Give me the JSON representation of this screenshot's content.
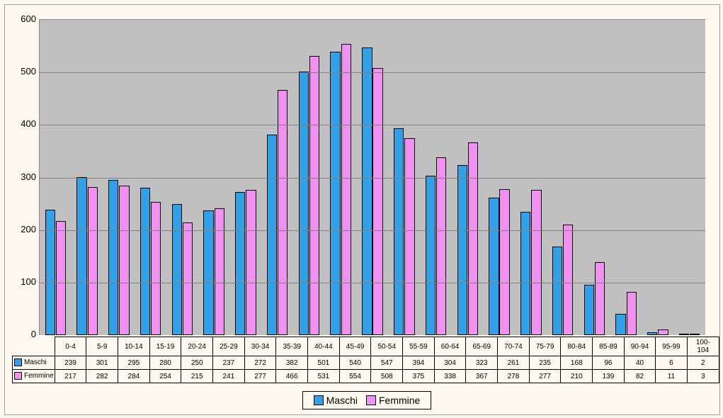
{
  "chart": {
    "type": "bar",
    "background_color": "#fdf8f0",
    "plot_background_color": "#c0c0c0",
    "grid_color": "#808080",
    "border_color": "#888888",
    "ylim": [
      0,
      600
    ],
    "ytick_step": 100,
    "ylabel_fontsize": 13,
    "category_fontsize": 10,
    "table_fontsize": 10,
    "legend_fontsize": 14,
    "bar_border_color": "#000000",
    "categories": [
      "0-4",
      "5-9",
      "10-14",
      "15-19",
      "20-24",
      "25-29",
      "30-34",
      "35-39",
      "40-44",
      "45-49",
      "50-54",
      "55-59",
      "60-64",
      "65-69",
      "70-74",
      "75-79",
      "80-84",
      "85-89",
      "90-94",
      "95-99",
      "100-104"
    ],
    "series": [
      {
        "name": "Maschi",
        "color": "#33a0e8",
        "values": [
          239,
          301,
          295,
          280,
          250,
          237,
          272,
          382,
          501,
          540,
          547,
          394,
          304,
          323,
          261,
          235,
          168,
          96,
          40,
          6,
          2
        ]
      },
      {
        "name": "Femmine",
        "color": "#f090f0",
        "values": [
          217,
          282,
          284,
          254,
          215,
          241,
          277,
          466,
          531,
          554,
          508,
          375,
          338,
          367,
          278,
          277,
          210,
          139,
          82,
          11,
          3
        ]
      }
    ]
  }
}
